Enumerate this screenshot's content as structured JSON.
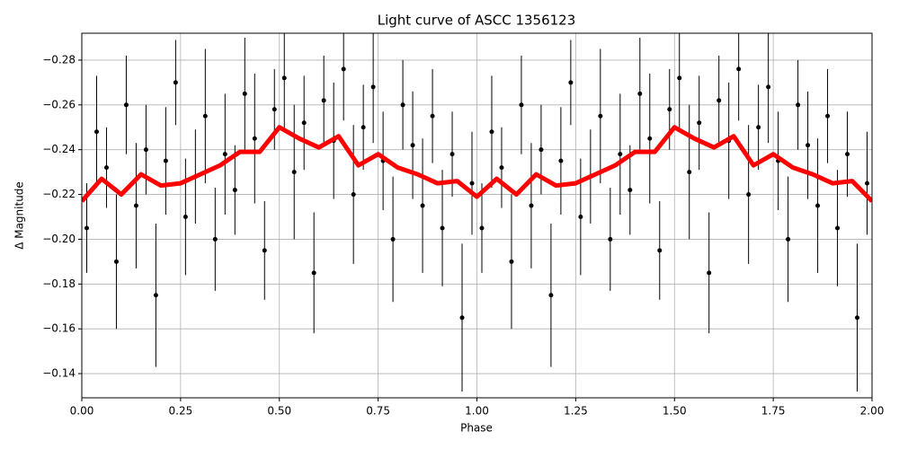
{
  "chart_data": {
    "type": "errorbar",
    "title": "Light curve of ASCC 1356123",
    "x_label": "Phase",
    "y_label": "Δ Magnitude",
    "xlim": [
      0,
      2
    ],
    "ylim": [
      -0.1292,
      -0.292
    ],
    "grid": true,
    "xticks": [
      {
        "value": 0,
        "label": "0.00"
      },
      {
        "value": 0.25,
        "label": "0.25"
      },
      {
        "value": 0.5,
        "label": "0.50"
      },
      {
        "value": 0.75,
        "label": "0.75"
      },
      {
        "value": 1,
        "label": "1.00"
      },
      {
        "value": 1.25,
        "label": "1.25"
      },
      {
        "value": 1.5,
        "label": "1.50"
      },
      {
        "value": 1.75,
        "label": "1.75"
      },
      {
        "value": 2,
        "label": "2.00"
      }
    ],
    "yticks": [
      {
        "value": -0.28,
        "label": "−0.28"
      },
      {
        "value": -0.26,
        "label": "−0.26"
      },
      {
        "value": -0.24,
        "label": "−0.24"
      },
      {
        "value": -0.22,
        "label": "−0.22"
      },
      {
        "value": -0.2,
        "label": "−0.20"
      },
      {
        "value": -0.18,
        "label": "−0.18"
      },
      {
        "value": -0.16,
        "label": "−0.16"
      },
      {
        "value": -0.14,
        "label": "−0.14"
      }
    ],
    "series": [
      {
        "mark": "points",
        "color": "#000000",
        "x": [
          0.0125,
          0.0375,
          0.0625,
          0.0875,
          0.1125,
          0.1375,
          0.1625,
          0.1875,
          0.2125,
          0.2375,
          0.2625,
          0.2875,
          0.3125,
          0.3375,
          0.3625,
          0.3875,
          0.4125,
          0.4375,
          0.4625,
          0.4875,
          0.5125,
          0.5375,
          0.5625,
          0.5875,
          0.6125,
          0.6375,
          0.6625,
          0.6875,
          0.7125,
          0.7375,
          0.7625,
          0.7875,
          0.8125,
          0.8375,
          0.8625,
          0.8875,
          0.9125,
          0.9375,
          0.9625,
          0.9875,
          1.0125,
          1.0375,
          1.0625,
          1.0875,
          1.1125,
          1.1375,
          1.1625,
          1.1875,
          1.2125,
          1.2375,
          1.2625,
          1.2875,
          1.3125,
          1.3375,
          1.3625,
          1.3875,
          1.4125,
          1.4375,
          1.4625,
          1.4875,
          1.5125,
          1.5375,
          1.5625,
          1.5875,
          1.6125,
          1.6375,
          1.6625,
          1.6875,
          1.7125,
          1.7375,
          1.7625,
          1.7875,
          1.8125,
          1.8375,
          1.8625,
          1.8875,
          1.9125,
          1.9375,
          1.9625,
          1.9875
        ],
        "values": [
          -0.205,
          -0.248,
          -0.232,
          -0.19,
          -0.26,
          -0.215,
          -0.24,
          -0.175,
          -0.235,
          -0.27,
          -0.21,
          -0.228,
          -0.255,
          -0.2,
          -0.238,
          -0.222,
          -0.265,
          -0.245,
          -0.195,
          -0.258,
          -0.272,
          -0.23,
          -0.252,
          -0.185,
          -0.262,
          -0.244,
          -0.276,
          -0.22,
          -0.25,
          -0.268,
          -0.235,
          -0.2,
          -0.26,
          -0.242,
          -0.215,
          -0.255,
          -0.205,
          -0.238,
          -0.165,
          -0.225,
          -0.205,
          -0.248,
          -0.232,
          -0.19,
          -0.26,
          -0.215,
          -0.24,
          -0.175,
          -0.235,
          -0.27,
          -0.21,
          -0.228,
          -0.255,
          -0.2,
          -0.238,
          -0.222,
          -0.265,
          -0.245,
          -0.195,
          -0.258,
          -0.272,
          -0.23,
          -0.252,
          -0.185,
          -0.262,
          -0.244,
          -0.276,
          -0.22,
          -0.25,
          -0.268,
          -0.235,
          -0.2,
          -0.26,
          -0.242,
          -0.215,
          -0.255,
          -0.205,
          -0.238,
          -0.165,
          -0.225
        ],
        "errors": [
          0.02,
          0.025,
          0.018,
          0.03,
          0.022,
          0.028,
          0.02,
          0.032,
          0.024,
          0.019,
          0.026,
          0.021,
          0.03,
          0.023,
          0.027,
          0.02,
          0.025,
          0.029,
          0.022,
          0.018,
          0.024,
          0.03,
          0.021,
          0.027,
          0.02,
          0.026,
          0.023,
          0.031,
          0.019,
          0.025,
          0.022,
          0.028,
          0.02,
          0.024,
          0.03,
          0.021,
          0.026,
          0.019,
          0.033,
          0.023,
          0.02,
          0.025,
          0.018,
          0.03,
          0.022,
          0.028,
          0.02,
          0.032,
          0.024,
          0.019,
          0.026,
          0.021,
          0.03,
          0.023,
          0.027,
          0.02,
          0.025,
          0.029,
          0.022,
          0.018,
          0.024,
          0.03,
          0.021,
          0.027,
          0.02,
          0.026,
          0.023,
          0.031,
          0.019,
          0.025,
          0.022,
          0.028,
          0.02,
          0.024,
          0.03,
          0.021,
          0.026,
          0.019,
          0.033,
          0.023
        ]
      },
      {
        "mark": "line",
        "color": "#ff0000",
        "x": [
          0,
          0.05,
          0.1,
          0.15,
          0.2,
          0.25,
          0.3,
          0.35,
          0.4,
          0.45,
          0.5,
          0.55,
          0.6,
          0.65,
          0.7,
          0.75,
          0.8,
          0.85,
          0.9,
          0.95,
          1,
          1.05,
          1.1,
          1.15,
          1.2,
          1.25,
          1.3,
          1.35,
          1.4,
          1.45,
          1.5,
          1.55,
          1.6,
          1.65,
          1.7,
          1.75,
          1.8,
          1.85,
          1.9,
          1.95,
          2
        ],
        "values": [
          -0.217,
          -0.227,
          -0.22,
          -0.229,
          -0.224,
          -0.225,
          -0.229,
          -0.233,
          -0.239,
          -0.239,
          -0.25,
          -0.245,
          -0.241,
          -0.246,
          -0.233,
          -0.238,
          -0.232,
          -0.229,
          -0.225,
          -0.226,
          -0.219,
          -0.227,
          -0.22,
          -0.229,
          -0.224,
          -0.225,
          -0.229,
          -0.233,
          -0.239,
          -0.239,
          -0.25,
          -0.245,
          -0.241,
          -0.246,
          -0.233,
          -0.238,
          -0.232,
          -0.229,
          -0.225,
          -0.226,
          -0.217
        ]
      }
    ]
  }
}
